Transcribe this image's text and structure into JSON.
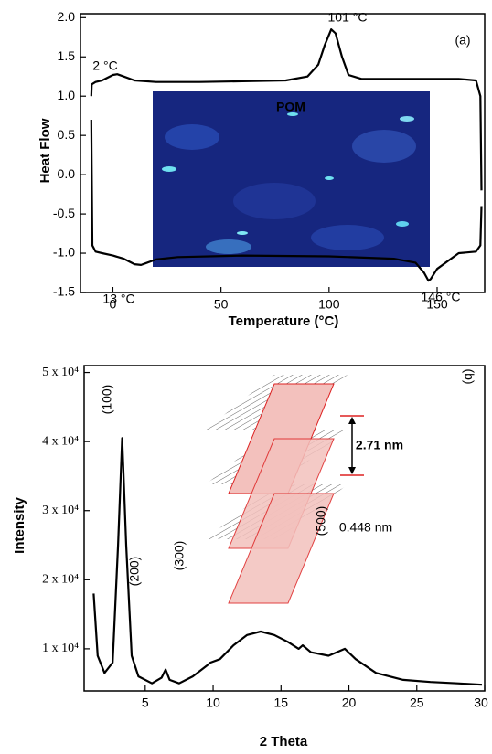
{
  "chart_data": [
    {
      "type": "line",
      "xlabel": "Temperature (°C)",
      "ylabel": "Heat Flow",
      "xlim": [
        -15,
        172
      ],
      "xticks": [
        0,
        50,
        100,
        150
      ],
      "ylim": [
        -1.5,
        2.05
      ],
      "yticks": [
        -1.5,
        -1.0,
        -0.5,
        0.0,
        0.5,
        1.0,
        1.5,
        2.0
      ],
      "series": [
        {
          "color": "#000000",
          "x": [
            -10,
            -9.8,
            -8,
            -5,
            0,
            2,
            5,
            10,
            20,
            40,
            60,
            80,
            90,
            95,
            98,
            101,
            103,
            106,
            109,
            115,
            140,
            160,
            168,
            170,
            170.5
          ],
          "values": [
            1.0,
            1.15,
            1.18,
            1.2,
            1.27,
            1.28,
            1.25,
            1.2,
            1.18,
            1.18,
            1.19,
            1.2,
            1.25,
            1.4,
            1.65,
            1.85,
            1.8,
            1.5,
            1.27,
            1.22,
            1.22,
            1.22,
            1.2,
            1.0,
            -0.2
          ]
        },
        {
          "color": "#000000",
          "x": [
            170.5,
            170,
            168,
            160,
            150,
            147,
            146,
            144,
            140,
            130,
            100,
            60,
            30,
            20,
            15,
            13,
            10,
            5,
            0,
            -5,
            -8,
            -9.5,
            -10
          ],
          "values": [
            -0.4,
            -0.9,
            -0.98,
            -1.0,
            -1.2,
            -1.33,
            -1.35,
            -1.25,
            -1.12,
            -1.07,
            -1.04,
            -1.03,
            -1.05,
            -1.08,
            -1.13,
            -1.15,
            -1.14,
            -1.07,
            -1.03,
            -1.0,
            -0.98,
            -0.9,
            0.7
          ]
        }
      ],
      "annotations": [
        "2 °C",
        "101 °C",
        "(a)",
        "13 °C",
        "146 °C",
        "POM"
      ]
    },
    {
      "type": "line",
      "xlabel": "2 Theta",
      "ylabel": "Intensity",
      "xlim": [
        0.5,
        30
      ],
      "xticks": [
        5,
        10,
        15,
        20,
        25,
        30
      ],
      "ylim": [
        3900,
        51000
      ],
      "yticks": [
        {
          "value": 10000,
          "label": "1 x 10⁴"
        },
        {
          "value": 20000,
          "label": "2 x 10⁴"
        },
        {
          "value": 30000,
          "label": "3 x 10⁴"
        },
        {
          "value": 40000,
          "label": "4 x 10⁴"
        },
        {
          "value": 50000,
          "label": "5 x 10⁴"
        }
      ],
      "series": [
        {
          "color": "#000000",
          "x": [
            1.2,
            1.5,
            2.0,
            2.6,
            3.0,
            3.3,
            3.6,
            4.0,
            4.5,
            5.5,
            6.2,
            6.5,
            6.8,
            7.5,
            8.5,
            9.5,
            9.8,
            10.5,
            11.5,
            12.5,
            13.5,
            14.5,
            15.5,
            16.3,
            16.6,
            17.2,
            18.5,
            19.7,
            20.5,
            22,
            24,
            26,
            28,
            29.8
          ],
          "values": [
            18000,
            9000,
            6500,
            8000,
            25000,
            40500,
            25000,
            9000,
            6000,
            5000,
            5800,
            7000,
            5500,
            5000,
            6000,
            7500,
            8000,
            8500,
            10500,
            12000,
            12500,
            12000,
            11000,
            10000,
            10500,
            9500,
            9000,
            10000,
            8500,
            6500,
            5500,
            5200,
            5000,
            4800
          ]
        }
      ],
      "annotations": [
        "(b)",
        "(100)",
        "(200)",
        "(300)",
        "(500)",
        "0.448 nm",
        "2.71 nm"
      ]
    }
  ]
}
